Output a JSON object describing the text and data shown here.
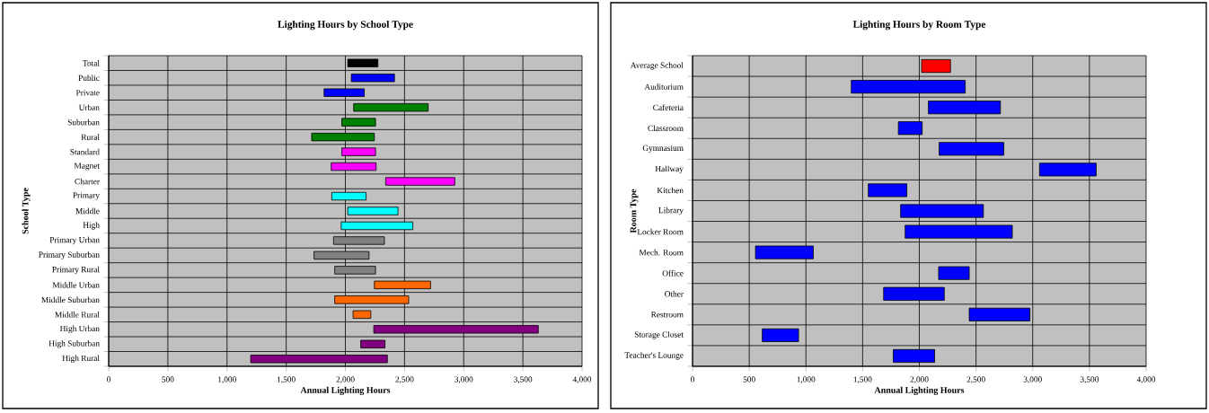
{
  "chart_data": [
    {
      "type": "bar",
      "orientation": "horizontal",
      "title": "Lighting Hours by School Type",
      "xlabel": "Annual Lighting Hours",
      "ylabel": "School Type",
      "grid": true,
      "categories": [
        "Total",
        "Public",
        "Private",
        "Urban",
        "Suburban",
        "Rural",
        "Standard",
        "Magnet",
        "Charter",
        "Primary",
        "Middle",
        "High",
        "Primary Urban",
        "Primary Suburban",
        "Primary Rural",
        "Middle Urban",
        "Middle Suburban",
        "Middle Rural",
        "High Urban",
        "High Suburban",
        "High Rural"
      ],
      "base": [
        2020,
        2050,
        1820,
        2070,
        1970,
        1715,
        1970,
        1880,
        2340,
        1885,
        2020,
        1965,
        1900,
        1735,
        1910,
        2245,
        1910,
        2065,
        2240,
        2130,
        1200
      ],
      "values": [
        255,
        365,
        340,
        630,
        285,
        530,
        285,
        380,
        585,
        290,
        425,
        605,
        430,
        465,
        345,
        475,
        625,
        150,
        1390,
        205,
        1155
      ],
      "colors": [
        "#000000",
        "#0000ff",
        "#0000ff",
        "#008000",
        "#008000",
        "#008000",
        "#ff00ff",
        "#ff00ff",
        "#ff00ff",
        "#00ffff",
        "#00ffff",
        "#00ffff",
        "#808080",
        "#808080",
        "#808080",
        "#ff6600",
        "#ff6600",
        "#ff6600",
        "#800080",
        "#800080",
        "#800080"
      ],
      "xlim": [
        0,
        4000
      ],
      "xticks": [
        0,
        500,
        {
          "value": 1000,
          "label": "1,000"
        },
        {
          "value": 1500,
          "label": "1,500"
        },
        {
          "value": 2000,
          "label": "2,000"
        },
        {
          "value": 2500,
          "label": "2,500"
        },
        {
          "value": 3000,
          "label": "3,000"
        },
        {
          "value": 3500,
          "label": "3,500"
        },
        {
          "value": 4000,
          "label": "4,000"
        }
      ]
    },
    {
      "type": "bar",
      "orientation": "horizontal",
      "title": "Lighting Hours by Room Type",
      "xlabel": "Annual Lighting Hours",
      "ylabel": "Room Type",
      "grid": true,
      "categories": [
        "Average School",
        "Auditorium",
        "Cafeteria",
        "Classroom",
        "Gymnasium",
        "Hallway",
        "Kitchen",
        "Library",
        "Locker Room",
        "Mech. Room",
        "Office",
        "Other",
        "Restroom",
        "Storage Closet",
        "Teacher's Lounge"
      ],
      "base": [
        2020,
        1400,
        2080,
        1815,
        2175,
        3060,
        1550,
        1835,
        1875,
        555,
        2170,
        1685,
        2440,
        615,
        1770
      ],
      "values": [
        255,
        1005,
        635,
        210,
        570,
        500,
        340,
        730,
        945,
        510,
        270,
        535,
        535,
        320,
        365
      ],
      "colors": [
        "#ff0000",
        "#0000ff",
        "#0000ff",
        "#0000ff",
        "#0000ff",
        "#0000ff",
        "#0000ff",
        "#0000ff",
        "#0000ff",
        "#0000ff",
        "#0000ff",
        "#0000ff",
        "#0000ff",
        "#0000ff",
        "#0000ff"
      ],
      "xlim": [
        0,
        4000
      ],
      "xticks": [
        0,
        500,
        {
          "value": 1000,
          "label": "1,000"
        },
        {
          "value": 1500,
          "label": "1,500"
        },
        {
          "value": 2000,
          "label": "2,000"
        },
        {
          "value": 2500,
          "label": "2,500"
        },
        {
          "value": 3000,
          "label": "3,000"
        },
        {
          "value": 3500,
          "label": "3,500"
        },
        {
          "value": 4000,
          "label": "4,000"
        }
      ]
    }
  ]
}
